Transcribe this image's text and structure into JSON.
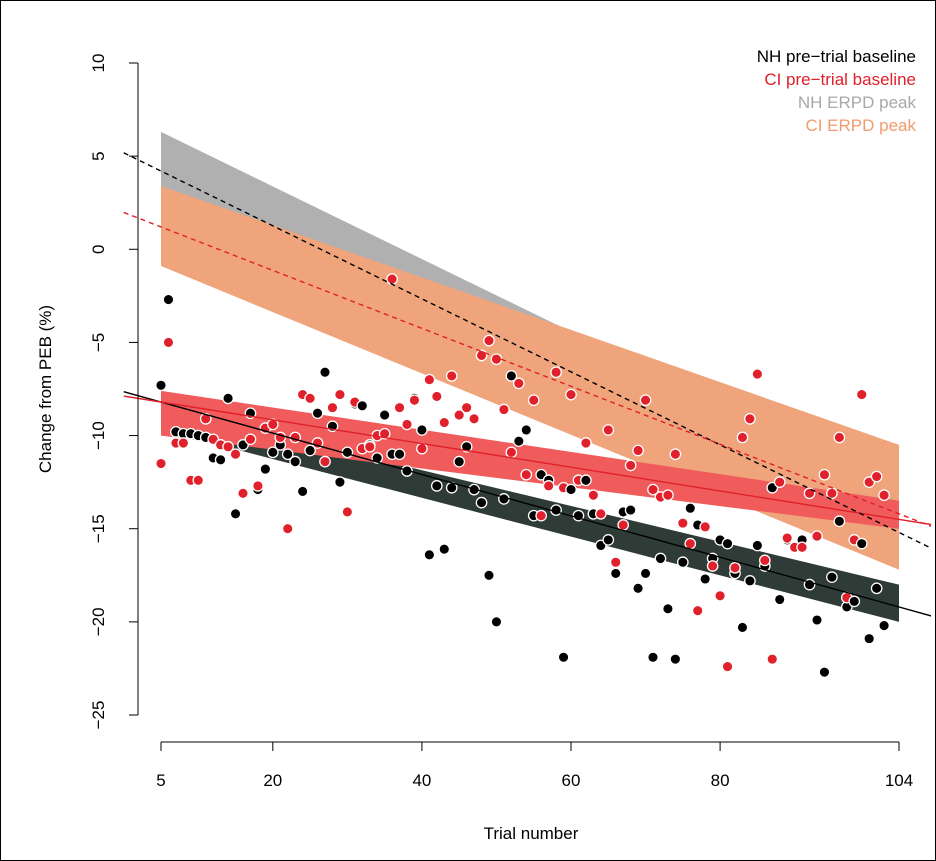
{
  "chart_data": {
    "type": "scatter",
    "xlabel": "Trial number",
    "ylabel": "Change from PEB (%)",
    "xlim": [
      5,
      104
    ],
    "ylim": [
      -25,
      10
    ],
    "x_ticks": [
      5,
      20,
      40,
      60,
      80,
      104
    ],
    "y_ticks": [
      -25,
      -20,
      -15,
      -10,
      -5,
      0,
      5,
      10
    ],
    "x_tick_labels": [
      "5",
      "20",
      "40",
      "60",
      "80",
      "104"
    ],
    "y_tick_labels": [
      "−25",
      "−20",
      "−15",
      "−10",
      "−5",
      "0",
      "5",
      "10"
    ],
    "grid": false,
    "legend_position": "top-right",
    "colors": {
      "nh_baseline": "#000000",
      "ci_baseline": "#e0202a",
      "nh_erpd": "#a8a8a8",
      "ci_erpd": "#ef9b6e"
    },
    "legend": [
      {
        "label": "NH pre−trial baseline",
        "color": "#000000"
      },
      {
        "label": "CI pre−trial baseline",
        "color": "#e0202a"
      },
      {
        "label": "NH ERPD peak",
        "color": "#a8a8a8"
      },
      {
        "label": "CI ERPD peak",
        "color": "#ef9b6e"
      }
    ],
    "series": [
      {
        "name": "NH pre−trial baseline",
        "fit": {
          "x": [
            5,
            104
          ],
          "y": [
            -8.2,
            -19.2
          ]
        },
        "band": {
          "x": [
            5,
            104
          ],
          "lower": [
            -9.7,
            -20.0
          ],
          "upper": [
            -8.5,
            -18.0
          ]
        },
        "band_color": "#2f3b36",
        "line_color": "#000000",
        "line_style": "solid",
        "points": [
          [
            5,
            -7.3
          ],
          [
            6,
            -2.7
          ],
          [
            7,
            -9.8
          ],
          [
            8,
            -9.9
          ],
          [
            9,
            -9.9
          ],
          [
            10,
            -10.0
          ],
          [
            11,
            -10.1
          ],
          [
            12,
            -11.2
          ],
          [
            13,
            -11.3
          ],
          [
            14,
            -8.0
          ],
          [
            15,
            -14.2
          ],
          [
            16,
            -10.5
          ],
          [
            17,
            -8.8
          ],
          [
            18,
            -12.9
          ],
          [
            19,
            -11.8
          ],
          [
            20,
            -10.9
          ],
          [
            21,
            -10.5
          ],
          [
            22,
            -11.0
          ],
          [
            23,
            -11.4
          ],
          [
            24,
            -13.0
          ],
          [
            25,
            -10.8
          ],
          [
            26,
            -8.8
          ],
          [
            27,
            -6.6
          ],
          [
            28,
            -9.5
          ],
          [
            29,
            -12.5
          ],
          [
            30,
            -10.9
          ],
          [
            31,
            -8.3
          ],
          [
            32,
            -8.4
          ],
          [
            33,
            -10.5
          ],
          [
            34,
            -11.2
          ],
          [
            35,
            -8.9
          ],
          [
            36,
            -11.0
          ],
          [
            37,
            -11.0
          ],
          [
            38,
            -11.9
          ],
          [
            39,
            -8.0
          ],
          [
            40,
            -9.7
          ],
          [
            41,
            -16.4
          ],
          [
            42,
            -12.7
          ],
          [
            43,
            -16.1
          ],
          [
            44,
            -12.8
          ],
          [
            45,
            -11.4
          ],
          [
            46,
            -10.6
          ],
          [
            47,
            -12.9
          ],
          [
            48,
            -13.6
          ],
          [
            49,
            -17.5
          ],
          [
            50,
            -20.0
          ],
          [
            51,
            -13.4
          ],
          [
            52,
            -6.8
          ],
          [
            53,
            -10.3
          ],
          [
            54,
            -9.7
          ],
          [
            55,
            -14.3
          ],
          [
            56,
            -12.1
          ],
          [
            57,
            -12.4
          ],
          [
            58,
            -14.0
          ],
          [
            59,
            -21.9
          ],
          [
            60,
            -12.9
          ],
          [
            61,
            -14.3
          ],
          [
            62,
            -12.4
          ],
          [
            63,
            -14.2
          ],
          [
            64,
            -15.9
          ],
          [
            65,
            -15.6
          ],
          [
            66,
            -17.4
          ],
          [
            67,
            -14.1
          ],
          [
            68,
            -14.0
          ],
          [
            69,
            -18.2
          ],
          [
            70,
            -17.4
          ],
          [
            71,
            -21.9
          ],
          [
            72,
            -16.6
          ],
          [
            73,
            -19.3
          ],
          [
            74,
            -22.0
          ],
          [
            75,
            -16.8
          ],
          [
            76,
            -13.9
          ],
          [
            77,
            -14.8
          ],
          [
            78,
            -17.7
          ],
          [
            79,
            -16.6
          ],
          [
            80,
            -15.6
          ],
          [
            81,
            -15.8
          ],
          [
            82,
            -17.4
          ],
          [
            83,
            -20.3
          ],
          [
            84,
            -17.8
          ],
          [
            85,
            -15.9
          ],
          [
            86,
            -17.0
          ],
          [
            87,
            -12.8
          ],
          [
            88,
            -18.8
          ],
          [
            89,
            -15.6
          ],
          [
            90,
            -16.0
          ],
          [
            91,
            -15.6
          ],
          [
            92,
            -18.0
          ],
          [
            93,
            -19.9
          ],
          [
            94,
            -22.7
          ],
          [
            95,
            -17.6
          ],
          [
            96,
            -14.6
          ],
          [
            97,
            -19.2
          ],
          [
            98,
            -18.9
          ],
          [
            99,
            -15.8
          ],
          [
            100,
            -20.9
          ],
          [
            101,
            -18.2
          ],
          [
            102,
            -20.2
          ]
        ]
      },
      {
        "name": "CI pre−trial baseline",
        "fit": {
          "x": [
            5,
            104
          ],
          "y": [
            -8.2,
            -14.5
          ]
        },
        "band": {
          "x": [
            5,
            104
          ],
          "lower": [
            -10.0,
            -15.0
          ],
          "upper": [
            -7.6,
            -13.5
          ]
        },
        "band_color": "#f05c5c",
        "line_color": "#e0202a",
        "line_style": "solid",
        "points": [
          [
            5,
            -11.5
          ],
          [
            6,
            -5.0
          ],
          [
            7,
            -10.4
          ],
          [
            8,
            -10.4
          ],
          [
            9,
            -12.4
          ],
          [
            10,
            -12.4
          ],
          [
            11,
            -9.1
          ],
          [
            12,
            -10.2
          ],
          [
            13,
            -10.5
          ],
          [
            14,
            -10.6
          ],
          [
            15,
            -11.0
          ],
          [
            16,
            -13.1
          ],
          [
            17,
            -10.2
          ],
          [
            18,
            -12.7
          ],
          [
            19,
            -9.6
          ],
          [
            20,
            -9.4
          ],
          [
            21,
            -10.1
          ],
          [
            22,
            -15.0
          ],
          [
            23,
            -10.1
          ],
          [
            24,
            -7.8
          ],
          [
            25,
            -8.0
          ],
          [
            26,
            -10.4
          ],
          [
            27,
            -11.4
          ],
          [
            28,
            -8.5
          ],
          [
            29,
            -7.8
          ],
          [
            30,
            -14.1
          ],
          [
            31,
            -8.2
          ],
          [
            32,
            -10.7
          ],
          [
            33,
            -10.6
          ],
          [
            34,
            -10.0
          ],
          [
            35,
            -9.9
          ],
          [
            36,
            -1.6
          ],
          [
            37,
            -8.5
          ],
          [
            38,
            -9.4
          ],
          [
            39,
            -8.1
          ],
          [
            40,
            -10.7
          ],
          [
            41,
            -7.0
          ],
          [
            42,
            -7.9
          ],
          [
            43,
            -9.3
          ],
          [
            44,
            -6.8
          ],
          [
            45,
            -8.9
          ],
          [
            46,
            -8.5
          ],
          [
            47,
            -9.1
          ],
          [
            48,
            -5.7
          ],
          [
            49,
            -4.9
          ],
          [
            50,
            -5.9
          ],
          [
            51,
            -8.6
          ],
          [
            52,
            -10.9
          ],
          [
            53,
            -7.2
          ],
          [
            54,
            -12.1
          ],
          [
            55,
            -8.1
          ],
          [
            56,
            -14.3
          ],
          [
            57,
            -12.7
          ],
          [
            58,
            -6.6
          ],
          [
            59,
            -12.8
          ],
          [
            60,
            -7.8
          ],
          [
            61,
            -12.4
          ],
          [
            62,
            -10.4
          ],
          [
            63,
            -13.2
          ],
          [
            64,
            -14.2
          ],
          [
            65,
            -9.7
          ],
          [
            66,
            -16.8
          ],
          [
            67,
            -14.8
          ],
          [
            68,
            -11.6
          ],
          [
            69,
            -10.8
          ],
          [
            70,
            -8.1
          ],
          [
            71,
            -12.9
          ],
          [
            72,
            -13.3
          ],
          [
            73,
            -13.2
          ],
          [
            74,
            -11.0
          ],
          [
            75,
            -14.7
          ],
          [
            76,
            -15.8
          ],
          [
            77,
            -19.4
          ],
          [
            78,
            -14.9
          ],
          [
            79,
            -17.0
          ],
          [
            80,
            -18.6
          ],
          [
            81,
            -22.4
          ],
          [
            82,
            -17.1
          ],
          [
            83,
            -10.1
          ],
          [
            84,
            -9.1
          ],
          [
            85,
            -6.7
          ],
          [
            86,
            -16.7
          ],
          [
            87,
            -22.0
          ],
          [
            88,
            -12.5
          ],
          [
            89,
            -15.5
          ],
          [
            90,
            -16.0
          ],
          [
            91,
            -16.0
          ],
          [
            92,
            -13.1
          ],
          [
            93,
            -15.4
          ],
          [
            94,
            -12.1
          ],
          [
            95,
            -13.1
          ],
          [
            96,
            -10.1
          ],
          [
            97,
            -18.7
          ],
          [
            98,
            -15.6
          ],
          [
            99,
            -7.8
          ],
          [
            100,
            -12.5
          ],
          [
            101,
            -12.2
          ],
          [
            102,
            -13.2
          ]
        ]
      },
      {
        "name": "NH ERPD peak",
        "fit": {
          "x": [
            5,
            104
          ],
          "y": [
            4.2,
            -15.2
          ]
        },
        "band": {
          "x": [
            5,
            104
          ],
          "lower": [
            2.0,
            -16.6
          ],
          "upper": [
            6.3,
            -13.0
          ]
        },
        "band_color": "#b0b0b0",
        "line_color": "#000000",
        "line_style": "dashed"
      },
      {
        "name": "CI ERPD peak",
        "fit": {
          "x": [
            5,
            104
          ],
          "y": [
            1.2,
            -14.2
          ]
        },
        "band": {
          "x": [
            5,
            104
          ],
          "lower": [
            -0.9,
            -17.2
          ],
          "upper": [
            3.4,
            -10.5
          ]
        },
        "band_color": "#f0a47c",
        "line_color": "#e0202a",
        "line_style": "dashed"
      }
    ]
  }
}
